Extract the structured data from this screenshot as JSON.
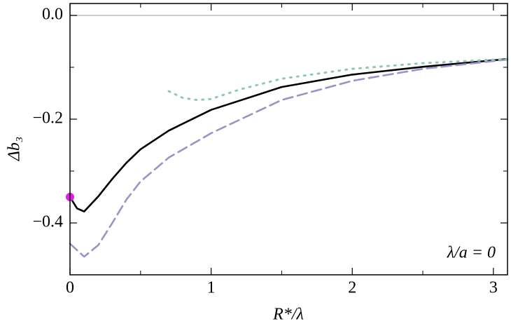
{
  "chart_data": {
    "type": "line",
    "xlabel": "R*/λ",
    "ylabel": "Δb₃",
    "annotation": "λ/a = 0",
    "xlim": [
      0,
      3.1
    ],
    "ylim": [
      -0.5,
      0.023
    ],
    "xticks": [
      0,
      1,
      2,
      3
    ],
    "yticks": [
      {
        "value": 0,
        "label": "0.0"
      },
      {
        "value": -0.2,
        "label": "−0.2"
      },
      {
        "value": -0.4,
        "label": "−0.4"
      }
    ],
    "xminorticks": [
      0.5,
      1.5,
      2.5
    ],
    "yminorticks": [
      -0.1,
      -0.3
    ],
    "zero_line": true,
    "series": [
      {
        "color": "#000000",
        "style": "solid",
        "x": [
          0,
          0.05,
          0.1,
          0.2,
          0.3,
          0.4,
          0.5,
          0.7,
          1.0,
          1.5,
          2.0,
          2.5,
          3.1
        ],
        "values": [
          -0.35,
          -0.372,
          -0.378,
          -0.349,
          -0.315,
          -0.284,
          -0.258,
          -0.222,
          -0.182,
          -0.138,
          -0.114,
          -0.099,
          -0.084
        ]
      },
      {
        "color": "#9b93c8",
        "style": "dashed",
        "x": [
          0,
          0.1,
          0.2,
          0.3,
          0.4,
          0.5,
          0.7,
          1.0,
          1.5,
          2.0,
          2.5,
          3.1
        ],
        "values": [
          -0.44,
          -0.465,
          -0.443,
          -0.4,
          -0.355,
          -0.32,
          -0.274,
          -0.227,
          -0.163,
          -0.126,
          -0.103,
          -0.085
        ]
      },
      {
        "color": "#8fc9b5",
        "style": "dotted",
        "x": [
          0.7,
          0.8,
          0.9,
          1.0,
          1.2,
          1.5,
          2.0,
          2.5,
          3.1
        ],
        "values": [
          -0.146,
          -0.159,
          -0.163,
          -0.161,
          -0.143,
          -0.122,
          -0.103,
          -0.092,
          -0.084
        ]
      }
    ],
    "points": [
      {
        "x": 0,
        "y": -0.35,
        "color": "#e020e0"
      }
    ]
  }
}
